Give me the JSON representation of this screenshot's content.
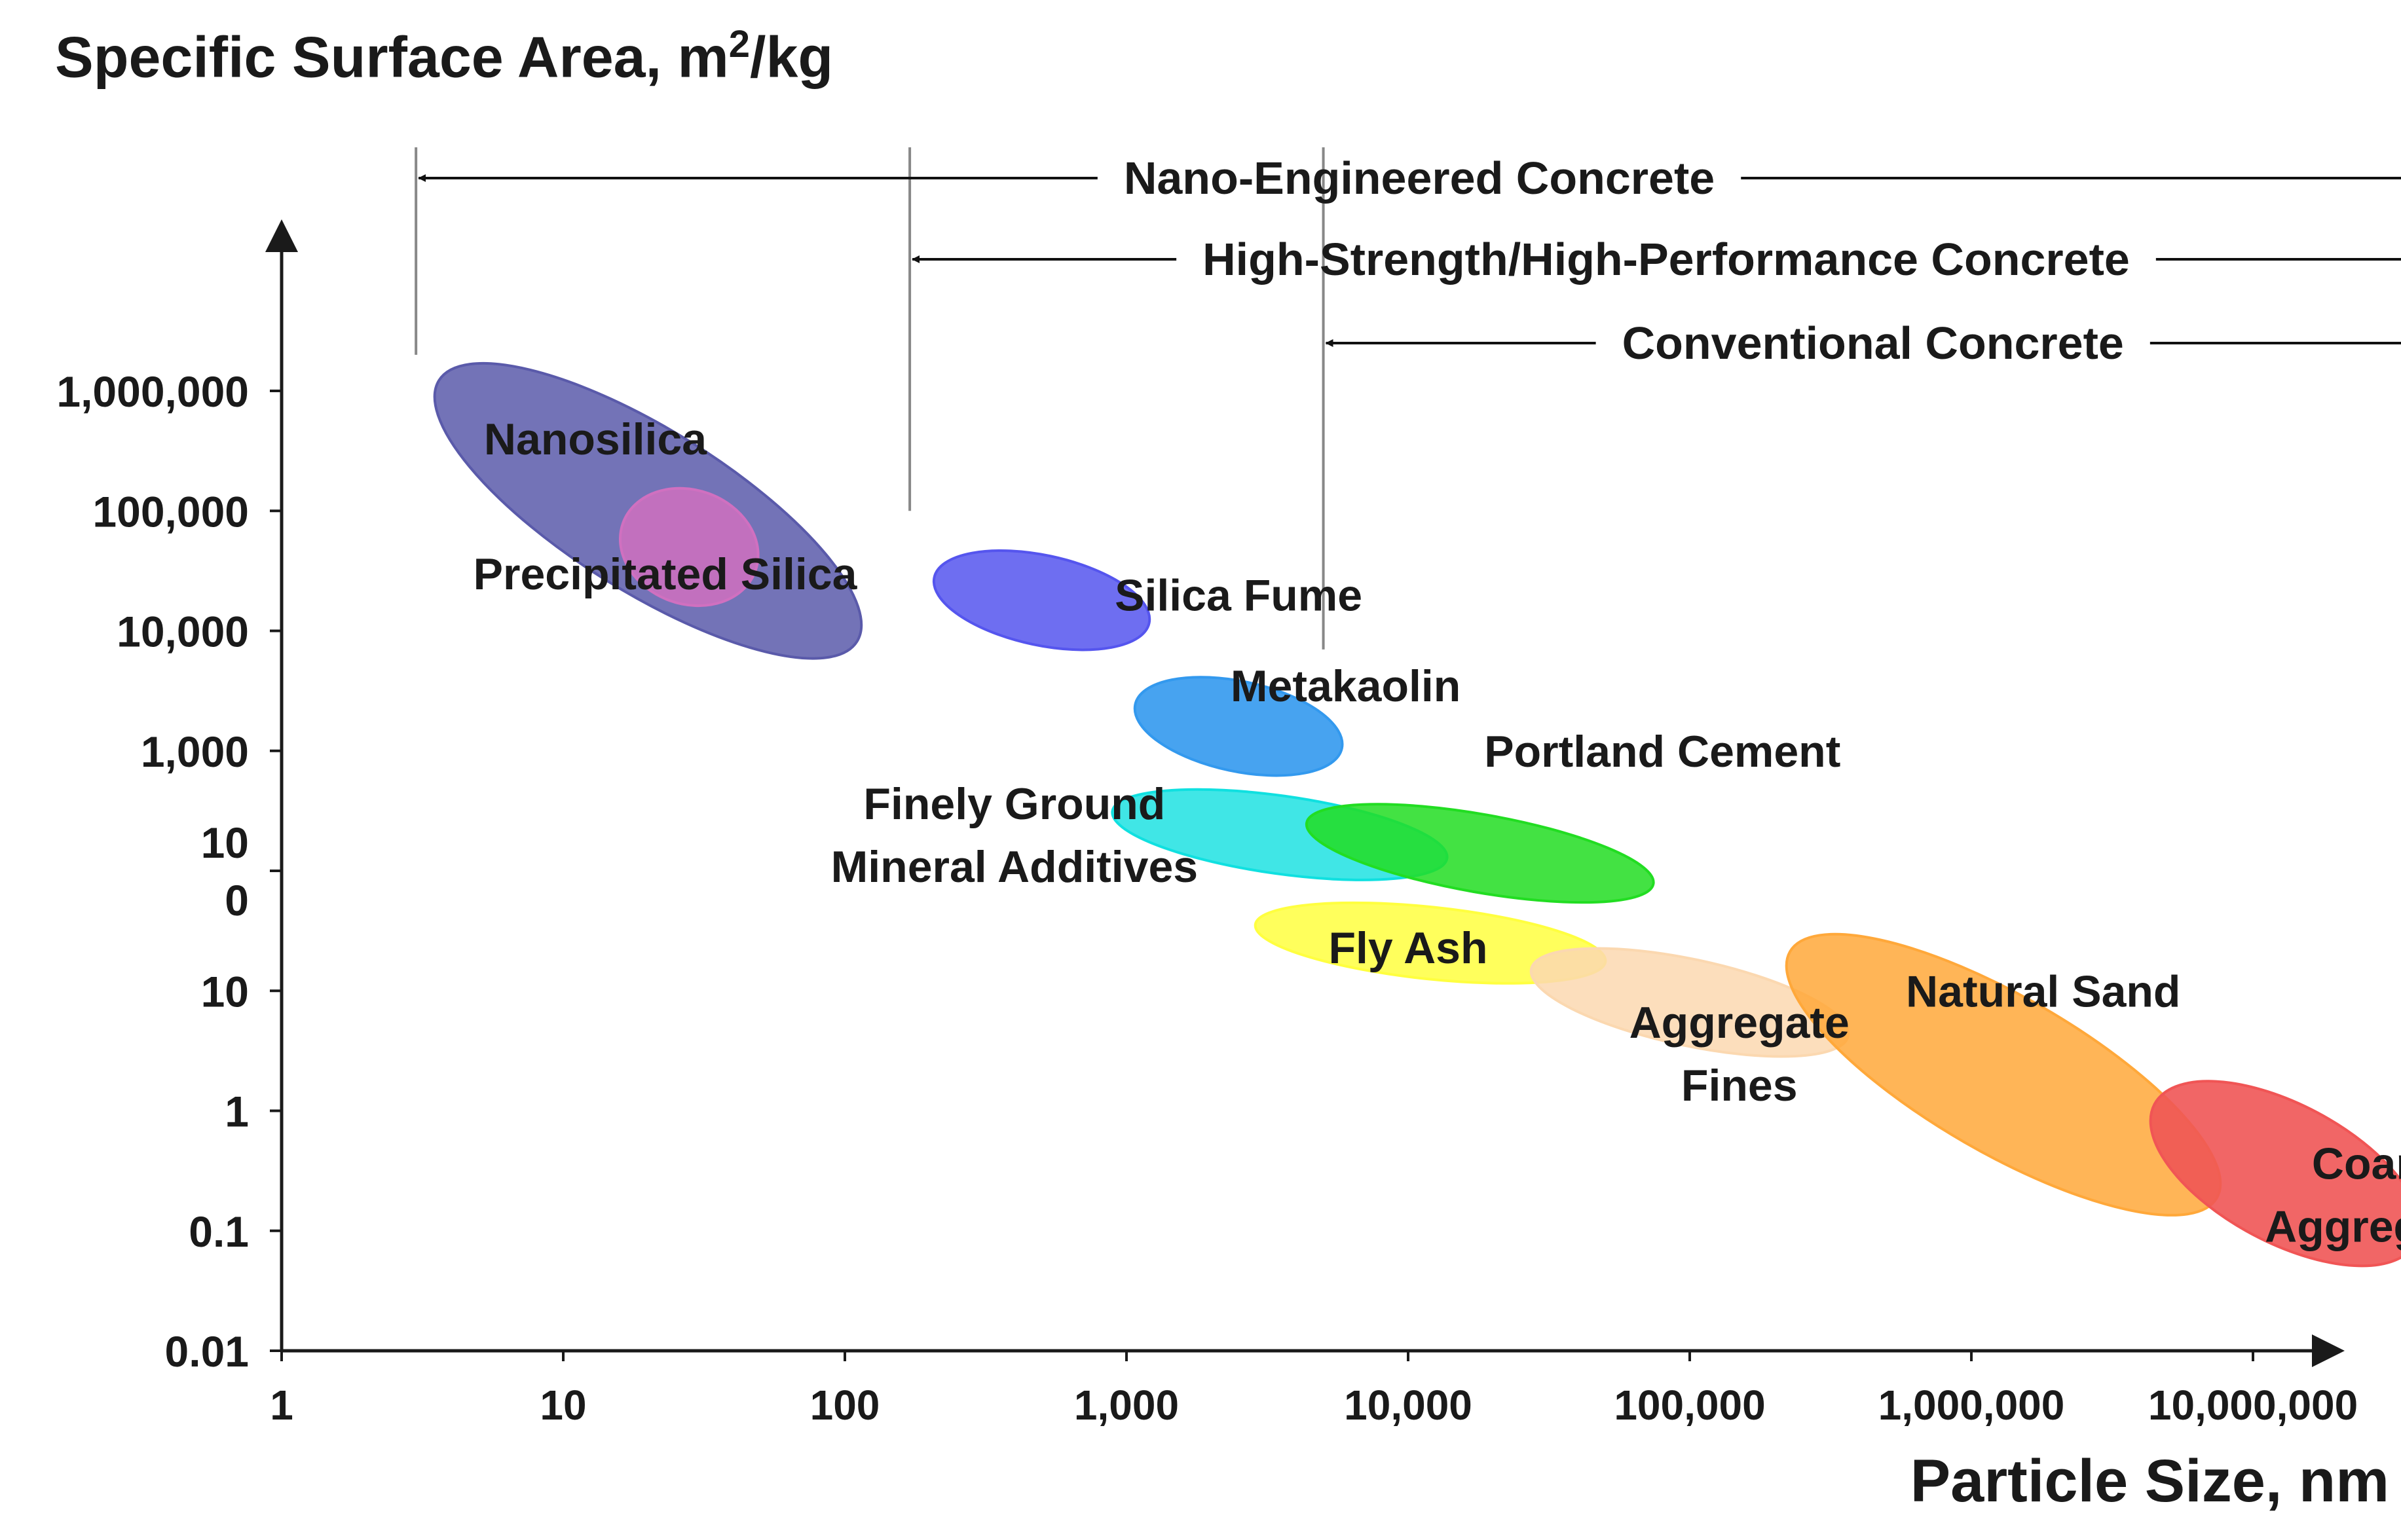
{
  "chart_data": {
    "type": "scatter",
    "title_parts": {
      "prefix": "Specific Surface Area, m",
      "sup": "2",
      "suffix": "/kg"
    },
    "xlabel": "Particle Size, nm",
    "x_scale": "log10",
    "y_scale": "log10",
    "xlim": [
      1,
      300000000
    ],
    "ylim": [
      0.01,
      1000000
    ],
    "x_ticks": [
      {
        "value": 1,
        "label": "1"
      },
      {
        "value": 10,
        "label": "10"
      },
      {
        "value": 100,
        "label": "100"
      },
      {
        "value": 1000,
        "label": "1,000"
      },
      {
        "value": 10000,
        "label": "10,000"
      },
      {
        "value": 100000,
        "label": "100,000"
      },
      {
        "value": 1000000,
        "label": "1,000,000"
      },
      {
        "value": 10000000,
        "label": "10,000,000"
      }
    ],
    "y_ticks": [
      {
        "value": 1000000,
        "label": "1,000,000"
      },
      {
        "value": 100000,
        "label": "100,000"
      },
      {
        "value": 10000,
        "label": "10,000"
      },
      {
        "value": 1000,
        "label": "1,000"
      },
      {
        "value": 100,
        "label": "10|0",
        "split": true
      },
      {
        "value": 10,
        "label": "10"
      },
      {
        "value": 1,
        "label": "1"
      },
      {
        "value": 0.1,
        "label": "0.1"
      },
      {
        "value": 0.01,
        "label": "0.01"
      }
    ],
    "regions": [
      {
        "name": "Nanosilica",
        "x_center": 20,
        "y_center": 100000,
        "x_span_decades": 1.75,
        "y_span_decades": 1.35,
        "tilt_deg": 32,
        "color": "#5a5aaa",
        "opacity": 0.85,
        "label": "Nanosilica",
        "label_lines": [
          "Nanosilica"
        ],
        "label_x": 13,
        "label_y": 400000
      },
      {
        "name": "Precipitated Silica",
        "x_center": 28,
        "y_center": 50000,
        "x_span_decades": 0.5,
        "y_span_decades": 0.95,
        "tilt_deg": 20,
        "color": "#d070c0",
        "opacity": 0.85,
        "label": "Precipitated Silica",
        "label_lines": [
          "Precipitated Silica"
        ],
        "label_x": 23,
        "label_y": 30000
      },
      {
        "name": "Silica Fume",
        "x_center": 500,
        "y_center": 18000,
        "x_span_decades": 0.78,
        "y_span_decades": 0.75,
        "tilt_deg": 12,
        "color": "#5555ee",
        "opacity": 0.85,
        "label": "Silica Fume",
        "label_lines": [
          "Silica Fume"
        ],
        "label_x": 2500,
        "label_y": 20000
      },
      {
        "name": "Fly Ash",
        "x_center": 12000,
        "y_center": 25,
        "x_span_decades": 1.25,
        "y_span_decades": 0.6,
        "tilt_deg": 6,
        "color": "#ffff40",
        "opacity": 0.85,
        "label": "Fly Ash",
        "label_lines": [
          "Fly Ash"
        ],
        "label_x": 10000,
        "label_y": 23
      },
      {
        "name": "Finely Ground Mineral Additives",
        "x_center": 3500,
        "y_center": 200,
        "x_span_decades": 1.2,
        "y_span_decades": 0.65,
        "tilt_deg": 8,
        "color": "#10e0e0",
        "opacity": 0.8,
        "label": "Finely Ground Mineral Additives",
        "label_lines": [
          "Finely Ground",
          "Mineral Additives"
        ],
        "label_x": 400,
        "label_y": 200
      },
      {
        "name": "Portland Cement",
        "x_center": 18000,
        "y_center": 140,
        "x_span_decades": 1.25,
        "y_span_decades": 0.65,
        "tilt_deg": 10,
        "color": "#22dd22",
        "opacity": 0.85,
        "label": "Portland Cement",
        "label_lines": [
          "Portland Cement"
        ],
        "label_x": 80000,
        "label_y": 1000
      },
      {
        "name": "Metakaolin",
        "x_center": 2500,
        "y_center": 1600,
        "x_span_decades": 0.75,
        "y_span_decades": 0.75,
        "tilt_deg": 12,
        "color": "#3399ee",
        "opacity": 0.9,
        "label": "Metakaolin",
        "label_lines": [
          "Metakaolin"
        ],
        "label_x": 6000,
        "label_y": 3500
      },
      {
        "name": "Aggregate Fines",
        "x_center": 100000,
        "y_center": 8,
        "x_span_decades": 1.15,
        "y_span_decades": 0.72,
        "tilt_deg": 12,
        "color": "#fbd8b0",
        "opacity": 0.85,
        "label": "Aggregate Fines",
        "label_lines": [
          "Aggregate",
          "Fines"
        ],
        "label_x": 150000,
        "label_y": 3
      },
      {
        "name": "Natural Sand",
        "x_center": 1300000,
        "y_center": 2,
        "x_span_decades": 1.75,
        "y_span_decades": 1.3,
        "tilt_deg": 30,
        "color": "#ffa83a",
        "opacity": 0.85,
        "label": "Natural Sand",
        "label_lines": [
          "Natural Sand"
        ],
        "label_x": 1800000,
        "label_y": 10
      },
      {
        "name": "Coarse Aggregates",
        "x_center": 13000000,
        "y_center": 0.3,
        "x_span_decades": 1.05,
        "y_span_decades": 1.15,
        "tilt_deg": 28,
        "color": "#f05555",
        "opacity": 0.9,
        "label": "Coarse Aggregates",
        "label_lines": [
          "Coarse",
          "Aggregates"
        ],
        "label_x": 30000000,
        "label_y": 0.2
      }
    ],
    "ranges": [
      {
        "name": "Nano-Engineered Concrete",
        "label": "Nano-Engineered Concrete",
        "x_start": 3,
        "x_end": 40000000
      },
      {
        "name": "High-Strength/High-Performance Concrete",
        "label": "High-Strength/High-Performance Concrete",
        "x_start": 170,
        "x_end": 40000000
      },
      {
        "name": "Conventional Concrete",
        "label": "Conventional Concrete",
        "x_start": 5000,
        "x_end": 40000000
      }
    ],
    "range_marker_lines": [
      {
        "x": 3,
        "y_bottom": 2000000
      },
      {
        "x": 170,
        "y_bottom": 100000
      },
      {
        "x": 5000,
        "y_bottom": 7000
      },
      {
        "x": 40000000,
        "y_bottom": 15
      }
    ],
    "colors": {
      "axis": "#1a1a1a",
      "marker_line": "#888888",
      "arrow": "#111111"
    }
  }
}
